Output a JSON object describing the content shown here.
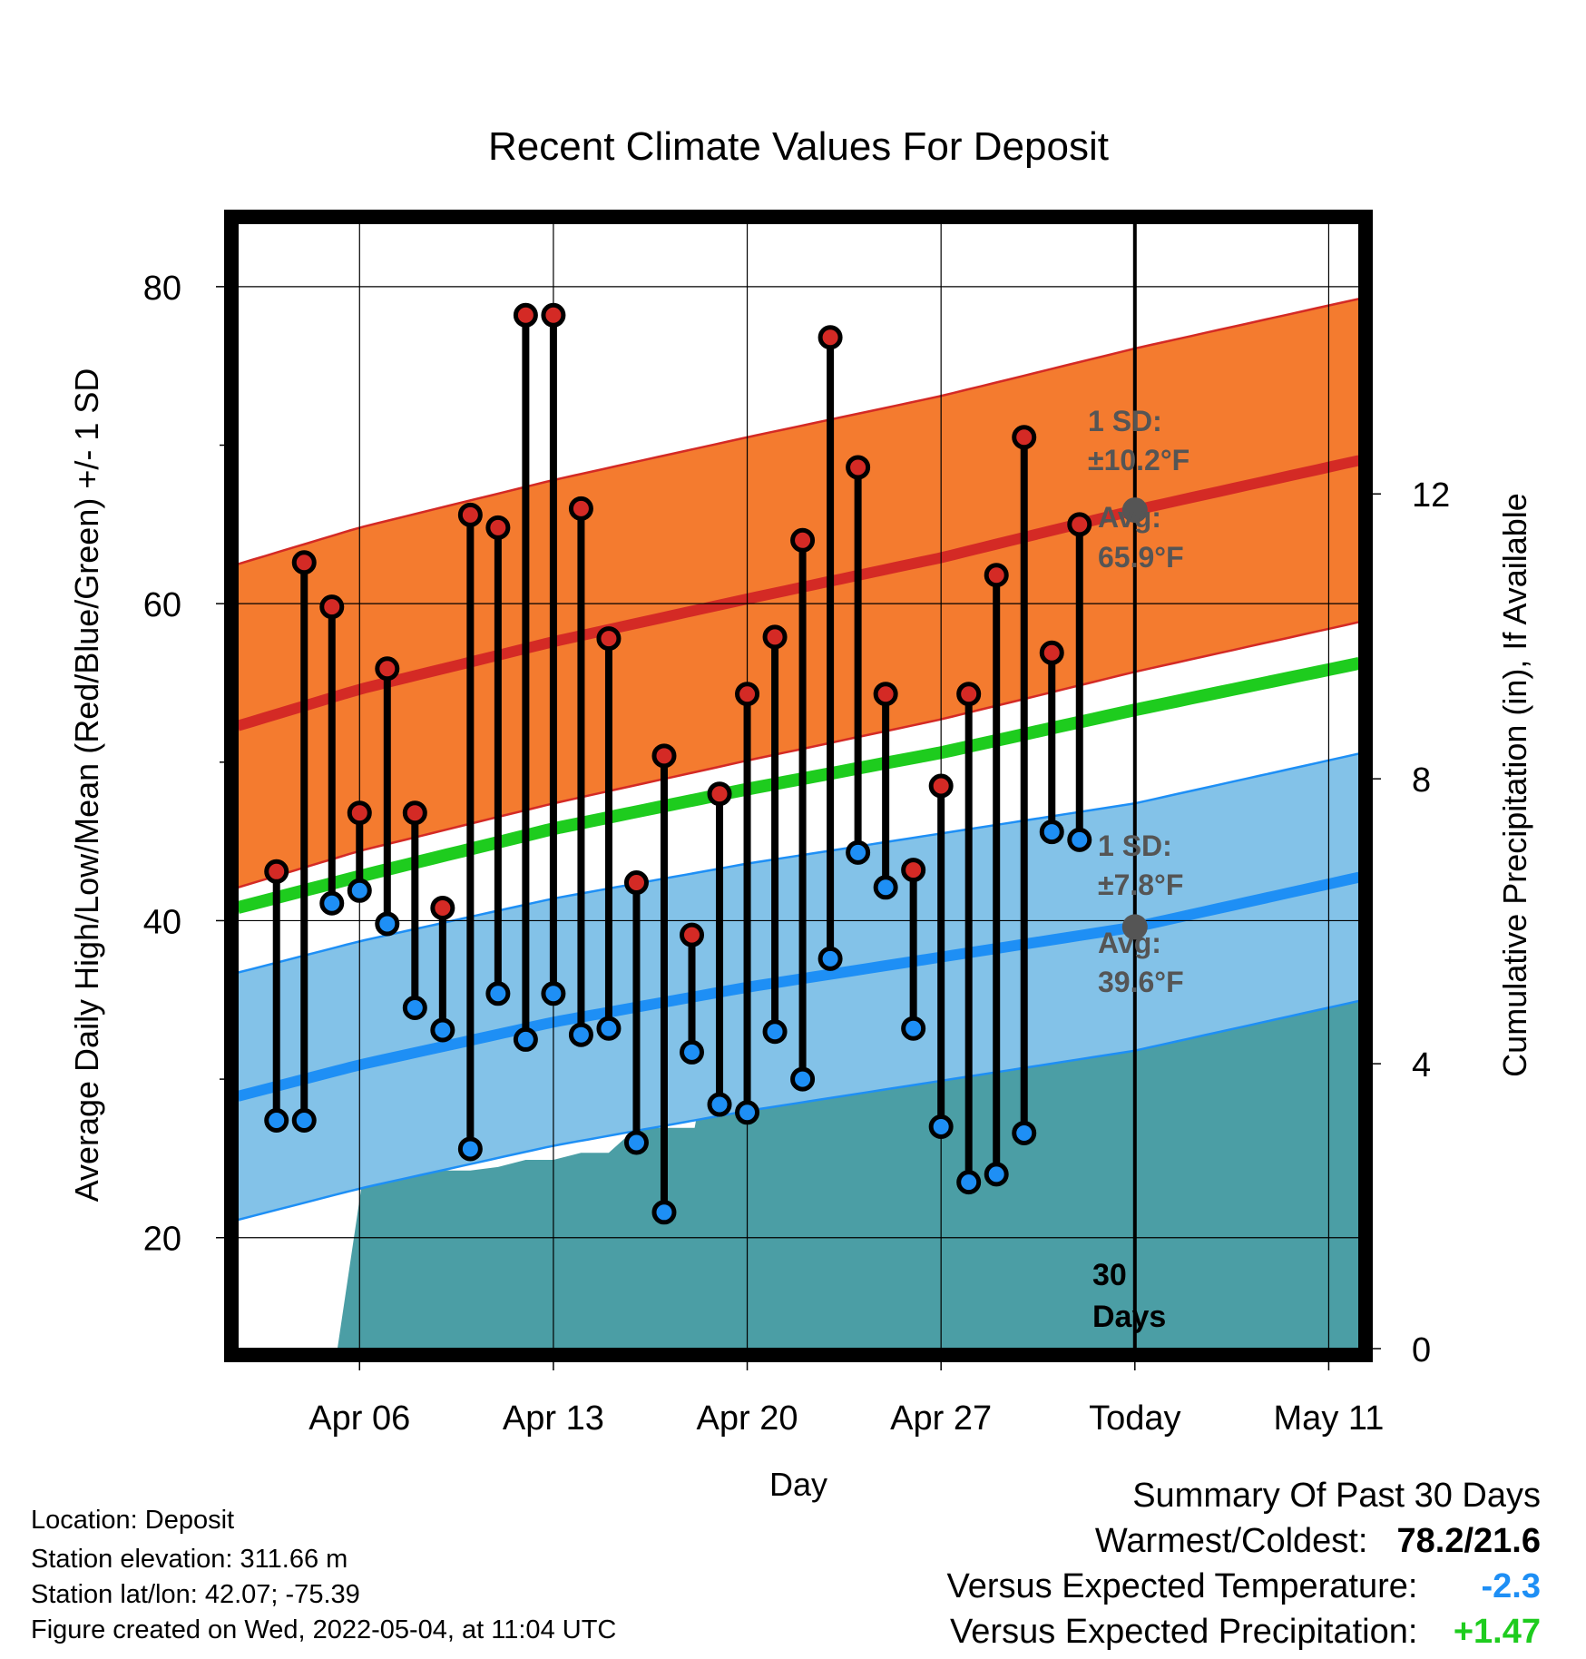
{
  "chart_data": {
    "type": "line",
    "title": "Recent Climate Values For Deposit",
    "xlabel": "Day",
    "ylabel": "Average Daily High/Low/Mean (Red/Blue/Green) +/- 1 SD",
    "y2label": "Cumulative Precipitation (in), If Available",
    "ylim": [
      13,
      84
    ],
    "y2lim": [
      0,
      15.8
    ],
    "xlim": [
      1.6,
      42.1
    ],
    "x_tick_labels": [
      "Apr 06",
      "Apr 13",
      "Apr 20",
      "Apr 27",
      "Today",
      "May 11"
    ],
    "x_tick_positions": [
      6,
      13,
      20,
      27,
      34,
      41
    ],
    "y_ticks": [
      20,
      40,
      60,
      80
    ],
    "y2_ticks": [
      0,
      4,
      8,
      12
    ],
    "today_x": 34,
    "window_label": "30 Days",
    "highs": [
      43.1,
      62.6,
      59.8,
      46.8,
      55.9,
      46.8,
      40.8,
      65.6,
      64.8,
      78.2,
      78.2,
      66.0,
      57.8,
      42.4,
      50.4,
      39.1,
      48.0,
      54.3,
      57.9,
      64.0,
      76.8,
      68.6,
      54.3,
      43.2,
      48.5,
      54.3,
      61.8,
      70.5,
      56.9,
      65.0
    ],
    "lows": [
      27.4,
      27.4,
      41.1,
      41.9,
      39.8,
      34.5,
      33.1,
      25.6,
      35.4,
      32.5,
      35.4,
      32.8,
      33.2,
      26.0,
      21.6,
      31.7,
      28.4,
      27.9,
      33.0,
      30.0,
      37.6,
      44.3,
      42.1,
      33.2,
      27.0,
      23.5,
      24.0,
      26.6,
      45.6,
      45.1
    ],
    "first_obs_x": 3,
    "normal_high": {
      "x": [
        2,
        6,
        13,
        20,
        27,
        34,
        42
      ],
      "values": [
        52.5,
        54.6,
        57.6,
        60.3,
        62.9,
        65.9,
        69.0
      ]
    },
    "normal_mean": {
      "x": [
        2,
        6,
        13,
        20,
        27,
        34,
        42
      ],
      "values": [
        41.0,
        42.8,
        45.8,
        48.3,
        50.6,
        53.3,
        56.2
      ]
    },
    "normal_low": {
      "x": [
        2,
        6,
        13,
        20,
        27,
        34,
        42
      ],
      "values": [
        29.1,
        30.9,
        33.6,
        35.8,
        37.7,
        39.6,
        42.7
      ]
    },
    "sd_high": 10.2,
    "sd_low": 7.8,
    "precip": {
      "x": [
        5.2,
        6.1,
        6.9,
        7.5,
        8.1,
        9.0,
        10.0,
        11.0,
        12.0,
        13.0,
        14.0,
        15.0,
        16.0,
        16.9,
        17.1,
        18.0,
        18.1,
        18.9,
        19.0,
        20.0,
        21.0,
        22.0,
        23.0,
        24.0,
        25.0,
        26.0,
        27.0,
        28.0,
        29.0,
        30.0,
        31.0,
        32.0,
        33.0,
        34.0,
        35.0,
        42.0
      ],
      "values": [
        0.0,
        2.35,
        2.4,
        2.4,
        2.5,
        2.5,
        2.5,
        2.55,
        2.65,
        2.65,
        2.75,
        2.75,
        3.1,
        3.1,
        3.1,
        3.1,
        3.1,
        4.8,
        4.8,
        4.8,
        4.8,
        4.85,
        4.85,
        4.85,
        4.85,
        4.85,
        4.95,
        4.95,
        4.95,
        4.95,
        4.95,
        5.0,
        5.0,
        5.0,
        5.0,
        5.0
      ]
    },
    "annotations": {
      "high": {
        "sd_label": "1 SD:",
        "sd_value": "±10.2°F",
        "avg_label": "Avg:",
        "avg_value": "65.9°F",
        "avg": 65.9
      },
      "low": {
        "sd_label": "1 SD:",
        "sd_value": "±7.8°F",
        "avg_label": "Avg:",
        "avg_value": "39.6°F",
        "avg": 39.6
      }
    },
    "colors": {
      "high_band": "#f47b2f",
      "high_line": "#d42a25",
      "low_band": "#83c2e8",
      "low_line": "#1e8ff5",
      "mean_line": "#1ecc1e",
      "precip": "#4b9ea5",
      "high_marker": "#d42a25",
      "low_marker": "#1e8ff5",
      "today_marker": "#555555"
    }
  },
  "info": {
    "location": "Location: Deposit",
    "elevation": "Station elevation: 311.66 m",
    "latlon": "Station lat/lon: 42.07; -75.39",
    "created": "Figure created on Wed, 2022-05-04, at 11:04 UTC"
  },
  "summary": {
    "title": "Summary Of Past 30 Days",
    "warm_cold_label": "Warmest/Coldest:",
    "warm_cold_value": "78.2/21.6",
    "temp_label": "Versus Expected Temperature:",
    "temp_value": "-2.3",
    "temp_color": "#1e8ff5",
    "precip_label": "Versus Expected Precipitation:",
    "precip_value": "+1.47",
    "precip_color": "#1ecc1e"
  }
}
